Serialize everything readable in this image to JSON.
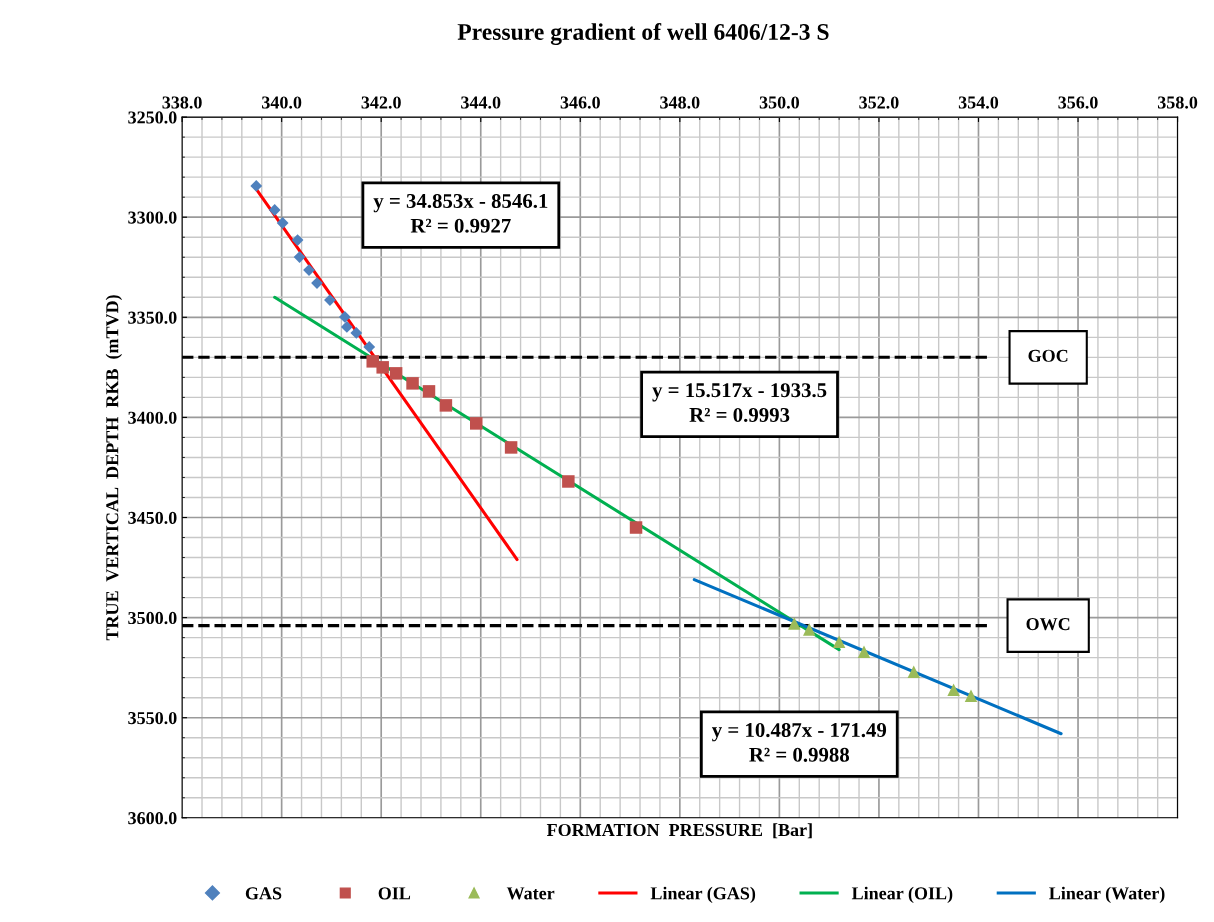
{
  "chart_data": {
    "type": "scatter",
    "title": "Pressure gradient of well 6406/12-3 S",
    "xlabel": "FORMATION  PRESSURE  [Bar]",
    "ylabel": "TRUE  VERTICAL  DEPTH  RKB  (mTVD)",
    "series": [
      {
        "name": "GAS",
        "marker": "diamond",
        "color": "#4f81bd",
        "x": [
          339.49,
          339.86,
          340.02,
          340.32,
          340.36,
          340.55,
          340.71,
          340.97,
          341.27,
          341.31,
          341.5,
          341.76
        ],
        "values": [
          3284.4,
          3296.4,
          3302.9,
          3311.4,
          3319.9,
          3326.4,
          3332.9,
          3341.4,
          3349.8,
          3354.8,
          3357.8,
          3364.8
        ]
      },
      {
        "name": "OIL",
        "marker": "square",
        "color": "#c0504d",
        "x": [
          341.83,
          342.03,
          342.3,
          342.63,
          342.96,
          343.3,
          343.91,
          344.61,
          345.76,
          347.12
        ],
        "values": [
          3372,
          3375,
          3378,
          3383,
          3387,
          3394,
          3403,
          3415,
          3432,
          3455
        ]
      },
      {
        "name": "Water",
        "marker": "triangle",
        "color": "#9bbb59",
        "x": [
          350.3,
          350.6,
          351.2,
          351.7,
          352.7,
          353.5,
          353.85
        ],
        "values": [
          3503,
          3506,
          3512,
          3517,
          3527,
          3536,
          3539
        ]
      },
      {
        "name": "Linear (GAS)",
        "type": "line",
        "marker": "none",
        "color": "#ff0000",
        "x": [
          339.49,
          344.73
        ],
        "values": [
          3286,
          3471
        ]
      },
      {
        "name": "Linear (OIL)",
        "type": "line",
        "marker": "none",
        "color": "#00b050",
        "x": [
          339.86,
          351.2
        ],
        "values": [
          3340,
          3516
        ]
      },
      {
        "name": "Linear (Water)",
        "type": "line",
        "marker": "none",
        "color": "#0070c0",
        "x": [
          348.29,
          355.66
        ],
        "values": [
          3481,
          3558
        ]
      }
    ],
    "xlim": [
      338,
      358
    ],
    "xticks": [
      {
        "value": 338,
        "label": "338.0"
      },
      {
        "value": 340,
        "label": "340.0"
      },
      {
        "value": 342,
        "label": "342.0"
      },
      {
        "value": 344,
        "label": "344.0"
      },
      {
        "value": 346,
        "label": "346.0"
      },
      {
        "value": 348,
        "label": "348.0"
      },
      {
        "value": 350,
        "label": "350.0"
      },
      {
        "value": 352,
        "label": "352.0"
      },
      {
        "value": 354,
        "label": "354.0"
      },
      {
        "value": 356,
        "label": "356.0"
      },
      {
        "value": 358,
        "label": "358.0"
      }
    ],
    "ylim": [
      3600,
      3250
    ],
    "yticks": [
      {
        "value": 3250,
        "label": "3250.0"
      },
      {
        "value": 3300,
        "label": "3300.0"
      },
      {
        "value": 3350,
        "label": "3350.0"
      },
      {
        "value": 3400,
        "label": "3400.0"
      },
      {
        "value": 3450,
        "label": "3450.0"
      },
      {
        "value": 3500,
        "label": "3500.0"
      },
      {
        "value": 3550,
        "label": "3550.0"
      },
      {
        "value": 3600,
        "label": "3600.0"
      }
    ],
    "ref_lines": [
      {
        "axis": "y",
        "value": 3370,
        "label": "GOC",
        "color": "#000000",
        "line_style": "dashed"
      },
      {
        "axis": "y",
        "value": 3504,
        "label": "OWC",
        "color": "#000000",
        "line_style": "dashed"
      }
    ],
    "annotations": [
      "y = 34.853x - 8546.1\nR² = 0.9927",
      "y = 15.517x - 1933.5\nR² = 0.9993",
      "y = 10.487x - 171.49\nR² = 0.9988"
    ],
    "grid": true,
    "legend": "bottom"
  }
}
